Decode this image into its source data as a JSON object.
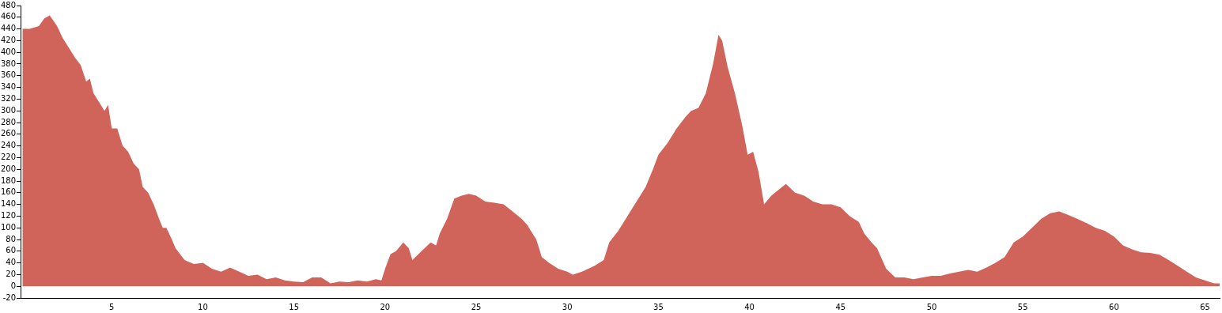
{
  "chart_data": {
    "type": "area",
    "xlim": [
      0,
      65.8
    ],
    "xticks": [
      5,
      10,
      15,
      20,
      25,
      30,
      35,
      40,
      45,
      50,
      55,
      60,
      65
    ],
    "ylim": [
      -20,
      480
    ],
    "yticks": [
      -20,
      0,
      20,
      40,
      60,
      80,
      100,
      120,
      140,
      160,
      180,
      200,
      220,
      240,
      260,
      280,
      300,
      320,
      340,
      360,
      380,
      400,
      420,
      440,
      460,
      480
    ],
    "grid": false,
    "legend": false,
    "series": [
      {
        "color": "#d0645b",
        "x": [
          0.1,
          0.5,
          1,
          1.3,
          1.6,
          2,
          2.3,
          2.6,
          3,
          3.3,
          3.6,
          3.8,
          4,
          4.3,
          4.6,
          4.8,
          5,
          5.3,
          5.6,
          5.9,
          6.2,
          6.5,
          6.7,
          7,
          7.3,
          7.6,
          7.8,
          8,
          8.3,
          8.5,
          9,
          9.5,
          10,
          10.5,
          11,
          11.5,
          12,
          12.5,
          13,
          13.5,
          14,
          14.5,
          15,
          15.5,
          16,
          16.5,
          17,
          17.5,
          18,
          18.5,
          19,
          19.5,
          19.8,
          20,
          20.3,
          20.6,
          21,
          21.3,
          21.5,
          22,
          22.5,
          22.8,
          23,
          23.4,
          23.8,
          24.2,
          24.6,
          25,
          25.5,
          26,
          26.5,
          27,
          27.5,
          27.8,
          28,
          28.3,
          28.6,
          29,
          29.5,
          30,
          30.3,
          30.8,
          31.5,
          32,
          32.3,
          32.8,
          33.3,
          33.8,
          34.3,
          34.7,
          35,
          35.5,
          36,
          36.5,
          36.8,
          37.2,
          37.6,
          38,
          38.3,
          38.5,
          38.8,
          39.2,
          39.6,
          39.9,
          40.2,
          40.5,
          40.8,
          41.2,
          41.6,
          42,
          42.5,
          43,
          43.5,
          44,
          44.5,
          45,
          45.5,
          46,
          46.3,
          46.7,
          47,
          47.5,
          48,
          48.5,
          49,
          49.5,
          50,
          50.5,
          51,
          51.5,
          52,
          52.5,
          53,
          53.5,
          54,
          54.5,
          55,
          55.5,
          56,
          56.5,
          57,
          57.5,
          58,
          58.5,
          59,
          59.5,
          60,
          60.5,
          61,
          61.5,
          62,
          62.5,
          63,
          63.5,
          64,
          64.5,
          65,
          65.5,
          65.8
        ],
        "values": [
          440,
          440,
          445,
          458,
          463,
          445,
          425,
          410,
          390,
          378,
          350,
          355,
          330,
          315,
          300,
          310,
          270,
          270,
          240,
          230,
          210,
          200,
          170,
          160,
          140,
          115,
          100,
          100,
          80,
          65,
          45,
          38,
          40,
          30,
          25,
          32,
          25,
          18,
          20,
          12,
          15,
          10,
          8,
          7,
          15,
          15,
          5,
          8,
          7,
          10,
          8,
          12,
          10,
          30,
          55,
          60,
          75,
          65,
          45,
          60,
          75,
          70,
          90,
          115,
          150,
          155,
          158,
          155,
          145,
          143,
          140,
          128,
          115,
          105,
          95,
          80,
          50,
          40,
          30,
          25,
          20,
          25,
          35,
          45,
          75,
          95,
          120,
          145,
          170,
          200,
          225,
          245,
          270,
          290,
          300,
          305,
          330,
          380,
          430,
          420,
          375,
          330,
          275,
          225,
          230,
          195,
          140,
          155,
          165,
          175,
          160,
          155,
          145,
          140,
          140,
          135,
          120,
          110,
          90,
          75,
          65,
          30,
          15,
          15,
          12,
          15,
          18,
          18,
          22,
          25,
          28,
          25,
          32,
          40,
          50,
          75,
          85,
          100,
          115,
          125,
          128,
          122,
          115,
          108,
          100,
          95,
          85,
          70,
          63,
          58,
          57,
          54,
          45,
          35,
          25,
          15,
          10,
          5,
          5
        ]
      }
    ]
  }
}
